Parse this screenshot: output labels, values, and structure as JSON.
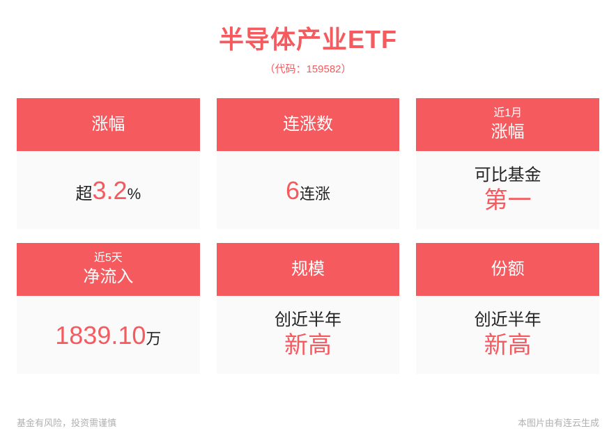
{
  "header": {
    "title": "半导体产业ETF",
    "subtitle": "（代码：159582）"
  },
  "colors": {
    "accent": "#f55a5f",
    "background": "#ffffff",
    "card_body_bg": "#fafafa",
    "text_dark": "#222222",
    "text_muted": "#b0b0b0"
  },
  "cards": [
    {
      "header_small": "",
      "header_main": "涨幅",
      "body_top_black": "",
      "body_line_prefix": "超",
      "body_line_value": "3.2",
      "body_line_suffix": "%",
      "body_bottom_red": ""
    },
    {
      "header_small": "",
      "header_main": "连涨数",
      "body_top_black": "",
      "body_line_prefix": "",
      "body_line_value": "6",
      "body_line_suffix": "连涨",
      "body_bottom_red": ""
    },
    {
      "header_small": "近1月",
      "header_main": "涨幅",
      "body_top_black": "可比基金",
      "body_line_prefix": "",
      "body_line_value": "",
      "body_line_suffix": "",
      "body_bottom_red": "第一"
    },
    {
      "header_small": "近5天",
      "header_main": "净流入",
      "body_top_black": "",
      "body_line_prefix": "",
      "body_line_value": "1839.10",
      "body_line_suffix": "万",
      "body_bottom_red": ""
    },
    {
      "header_small": "",
      "header_main": "规模",
      "body_top_black": "创近半年",
      "body_line_prefix": "",
      "body_line_value": "",
      "body_line_suffix": "",
      "body_bottom_red": "新高"
    },
    {
      "header_small": "",
      "header_main": "份额",
      "body_top_black": "创近半年",
      "body_line_prefix": "",
      "body_line_value": "",
      "body_line_suffix": "",
      "body_bottom_red": "新高"
    }
  ],
  "footer": {
    "left": "基金有风险，投资需谨慎",
    "right": "本图片由有连云生成"
  }
}
